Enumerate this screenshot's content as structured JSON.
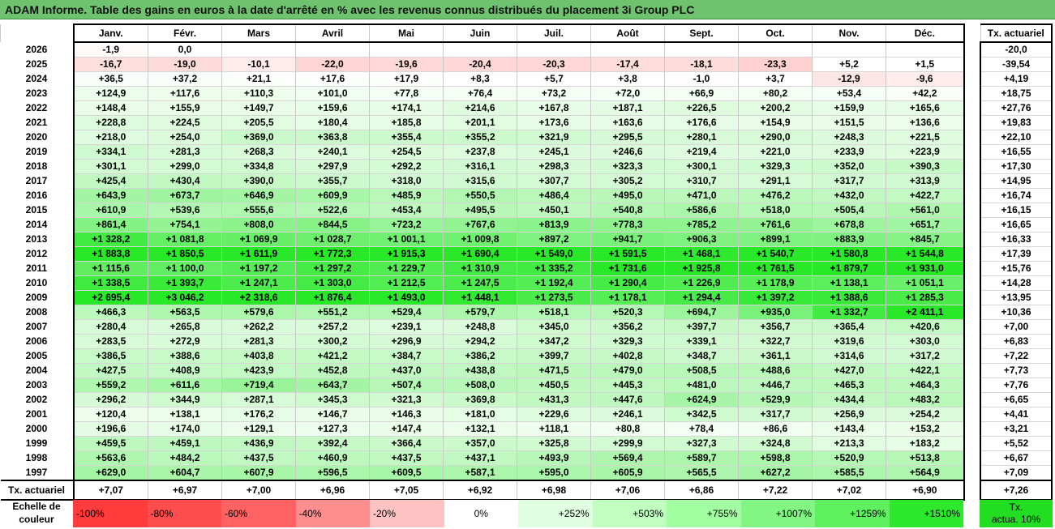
{
  "title": "ADAM Informe. Table des gains en euros à la date d'arrêté en % avec les revenus connus distribués du placement 3i Group PLC",
  "months": [
    "Janv.",
    "Févr.",
    "Mars",
    "Avril",
    "Mai",
    "Juin",
    "Juil.",
    "Août",
    "Sept.",
    "Oct.",
    "Nov.",
    "Déc."
  ],
  "act_header": "Tx. actuariel",
  "rows": [
    {
      "year": "2026",
      "values": [
        "-1,9",
        "0,0",
        "",
        "",
        "",
        "",
        "",
        "",
        "",
        "",
        "",
        ""
      ],
      "act": "-20,0"
    },
    {
      "year": "2025",
      "values": [
        "-16,7",
        "-19,0",
        "-10,1",
        "-22,0",
        "-19,6",
        "-20,4",
        "-20,3",
        "-17,4",
        "-18,1",
        "-23,3",
        "+5,2",
        "+1,5"
      ],
      "act": "-39,54"
    },
    {
      "year": "2024",
      "values": [
        "+36,5",
        "+37,2",
        "+21,1",
        "+17,6",
        "+17,9",
        "+8,3",
        "+5,7",
        "+3,8",
        "-1,0",
        "+3,7",
        "-12,9",
        "-9,6"
      ],
      "act": "+4,19"
    },
    {
      "year": "2023",
      "values": [
        "+124,9",
        "+117,6",
        "+110,3",
        "+101,0",
        "+77,8",
        "+76,4",
        "+73,2",
        "+72,0",
        "+66,9",
        "+80,2",
        "+53,4",
        "+42,2"
      ],
      "act": "+18,75"
    },
    {
      "year": "2022",
      "values": [
        "+148,4",
        "+155,9",
        "+149,7",
        "+159,6",
        "+174,1",
        "+214,6",
        "+167,8",
        "+187,1",
        "+226,5",
        "+200,2",
        "+159,9",
        "+165,6"
      ],
      "act": "+27,76"
    },
    {
      "year": "2021",
      "values": [
        "+228,8",
        "+224,5",
        "+205,5",
        "+180,4",
        "+185,8",
        "+201,1",
        "+173,6",
        "+163,6",
        "+176,6",
        "+154,9",
        "+151,5",
        "+136,6"
      ],
      "act": "+19,83"
    },
    {
      "year": "2020",
      "values": [
        "+218,0",
        "+254,0",
        "+369,0",
        "+363,8",
        "+355,4",
        "+355,2",
        "+321,9",
        "+295,5",
        "+280,1",
        "+290,0",
        "+248,3",
        "+221,5"
      ],
      "act": "+22,10"
    },
    {
      "year": "2019",
      "values": [
        "+334,1",
        "+281,3",
        "+268,3",
        "+240,1",
        "+254,5",
        "+237,8",
        "+245,1",
        "+246,6",
        "+219,4",
        "+221,0",
        "+233,9",
        "+223,9"
      ],
      "act": "+16,55"
    },
    {
      "year": "2018",
      "values": [
        "+301,1",
        "+299,0",
        "+334,8",
        "+297,9",
        "+292,2",
        "+316,1",
        "+298,3",
        "+323,3",
        "+300,1",
        "+329,3",
        "+352,0",
        "+390,3"
      ],
      "act": "+17,30"
    },
    {
      "year": "2017",
      "values": [
        "+425,4",
        "+430,4",
        "+390,0",
        "+355,7",
        "+318,0",
        "+315,6",
        "+307,7",
        "+305,2",
        "+310,7",
        "+291,1",
        "+317,7",
        "+313,9"
      ],
      "act": "+14,95"
    },
    {
      "year": "2016",
      "values": [
        "+643,9",
        "+673,7",
        "+646,9",
        "+609,9",
        "+485,9",
        "+550,5",
        "+486,4",
        "+495,0",
        "+471,0",
        "+476,2",
        "+432,0",
        "+422,7"
      ],
      "act": "+16,74"
    },
    {
      "year": "2015",
      "values": [
        "+610,9",
        "+539,6",
        "+555,6",
        "+522,6",
        "+453,4",
        "+495,5",
        "+450,1",
        "+540,8",
        "+586,6",
        "+518,0",
        "+505,4",
        "+561,0"
      ],
      "act": "+16,15"
    },
    {
      "year": "2014",
      "values": [
        "+861,4",
        "+754,1",
        "+808,0",
        "+844,5",
        "+723,2",
        "+767,6",
        "+813,9",
        "+778,3",
        "+785,2",
        "+761,6",
        "+678,8",
        "+651,7"
      ],
      "act": "+16,65"
    },
    {
      "year": "2013",
      "values": [
        "+1 328,2",
        "+1 081,8",
        "+1 069,9",
        "+1 028,7",
        "+1 001,1",
        "+1 009,8",
        "+897,2",
        "+941,7",
        "+906,3",
        "+899,1",
        "+883,9",
        "+845,7"
      ],
      "act": "+16,33"
    },
    {
      "year": "2012",
      "values": [
        "+1 883,8",
        "+1 850,5",
        "+1 611,9",
        "+1 772,3",
        "+1 915,3",
        "+1 690,4",
        "+1 549,0",
        "+1 591,5",
        "+1 468,1",
        "+1 540,7",
        "+1 580,8",
        "+1 544,8"
      ],
      "act": "+17,39"
    },
    {
      "year": "2011",
      "values": [
        "+1 115,6",
        "+1 100,0",
        "+1 197,2",
        "+1 297,2",
        "+1 229,7",
        "+1 310,9",
        "+1 335,2",
        "+1 731,6",
        "+1 925,8",
        "+1 761,5",
        "+1 879,7",
        "+1 931,0"
      ],
      "act": "+15,76"
    },
    {
      "year": "2010",
      "values": [
        "+1 338,5",
        "+1 393,7",
        "+1 247,1",
        "+1 303,0",
        "+1 212,5",
        "+1 247,5",
        "+1 192,4",
        "+1 290,4",
        "+1 226,9",
        "+1 178,9",
        "+1 138,1",
        "+1 051,1"
      ],
      "act": "+14,28"
    },
    {
      "year": "2009",
      "values": [
        "+2 695,4",
        "+3 046,2",
        "+2 318,6",
        "+1 876,4",
        "+1 493,0",
        "+1 448,1",
        "+1 273,5",
        "+1 178,1",
        "+1 294,4",
        "+1 397,2",
        "+1 388,6",
        "+1 285,3"
      ],
      "act": "+13,95"
    },
    {
      "year": "2008",
      "values": [
        "+466,3",
        "+563,5",
        "+579,6",
        "+551,2",
        "+529,4",
        "+579,7",
        "+518,1",
        "+520,3",
        "+694,7",
        "+935,0",
        "+1 332,7",
        "+2 411,1"
      ],
      "act": "+10,36"
    },
    {
      "year": "2007",
      "values": [
        "+280,4",
        "+265,8",
        "+262,2",
        "+257,2",
        "+239,1",
        "+248,8",
        "+345,0",
        "+356,2",
        "+397,7",
        "+356,7",
        "+365,4",
        "+420,6"
      ],
      "act": "+7,00"
    },
    {
      "year": "2006",
      "values": [
        "+283,5",
        "+272,9",
        "+281,3",
        "+300,2",
        "+296,9",
        "+294,2",
        "+347,2",
        "+329,3",
        "+339,1",
        "+322,7",
        "+319,6",
        "+303,0"
      ],
      "act": "+6,83"
    },
    {
      "year": "2005",
      "values": [
        "+386,5",
        "+388,6",
        "+403,8",
        "+421,2",
        "+384,7",
        "+386,2",
        "+399,7",
        "+402,8",
        "+348,7",
        "+361,1",
        "+314,6",
        "+317,2"
      ],
      "act": "+7,22"
    },
    {
      "year": "2004",
      "values": [
        "+427,5",
        "+408,9",
        "+423,9",
        "+452,8",
        "+437,0",
        "+438,8",
        "+471,5",
        "+479,0",
        "+508,5",
        "+488,6",
        "+427,0",
        "+422,1"
      ],
      "act": "+7,73"
    },
    {
      "year": "2003",
      "values": [
        "+559,2",
        "+611,6",
        "+719,4",
        "+643,7",
        "+507,4",
        "+508,0",
        "+450,5",
        "+445,3",
        "+481,0",
        "+446,7",
        "+465,3",
        "+464,3"
      ],
      "act": "+7,76"
    },
    {
      "year": "2002",
      "values": [
        "+296,2",
        "+344,9",
        "+287,1",
        "+345,3",
        "+321,3",
        "+369,8",
        "+431,3",
        "+447,6",
        "+624,9",
        "+529,9",
        "+434,4",
        "+483,2"
      ],
      "act": "+6,65"
    },
    {
      "year": "2001",
      "values": [
        "+120,4",
        "+138,1",
        "+176,2",
        "+146,7",
        "+146,3",
        "+181,0",
        "+229,6",
        "+246,1",
        "+342,5",
        "+317,7",
        "+256,9",
        "+254,2"
      ],
      "act": "+4,41"
    },
    {
      "year": "2000",
      "values": [
        "+196,6",
        "+174,0",
        "+129,1",
        "+127,3",
        "+147,4",
        "+132,1",
        "+118,1",
        "+80,8",
        "+78,4",
        "+86,6",
        "+143,4",
        "+153,2"
      ],
      "act": "+3,21"
    },
    {
      "year": "1999",
      "values": [
        "+459,5",
        "+459,1",
        "+436,9",
        "+392,4",
        "+366,4",
        "+357,0",
        "+325,8",
        "+299,9",
        "+327,3",
        "+324,8",
        "+213,3",
        "+183,2"
      ],
      "act": "+5,52"
    },
    {
      "year": "1998",
      "values": [
        "+563,6",
        "+484,2",
        "+437,5",
        "+460,9",
        "+437,5",
        "+437,1",
        "+493,9",
        "+569,4",
        "+589,7",
        "+598,8",
        "+520,9",
        "+513,8"
      ],
      "act": "+6,67"
    },
    {
      "year": "1997",
      "values": [
        "+629,0",
        "+604,7",
        "+607,9",
        "+596,5",
        "+609,5",
        "+587,1",
        "+595,0",
        "+605,9",
        "+565,5",
        "+627,2",
        "+585,5",
        "+564,9"
      ],
      "act": "+7,09"
    }
  ],
  "footer": {
    "label": "Tx. actuariel",
    "values": [
      "+7,07",
      "+6,97",
      "+7,00",
      "+6,96",
      "+7,05",
      "+6,92",
      "+6,98",
      "+7,06",
      "+6,86",
      "+7,22",
      "+7,02",
      "+6,90"
    ],
    "act": "+7,26"
  },
  "scale": {
    "label_line1": "Echelle de",
    "label_line2": "couleur",
    "steps": [
      {
        "label": "-100%",
        "color": "#ff3b3b",
        "kind": "neg"
      },
      {
        "label": "-80%",
        "color": "#ff4d4d",
        "kind": "neg"
      },
      {
        "label": "-60%",
        "color": "#ff6262",
        "kind": "neg"
      },
      {
        "label": "-40%",
        "color": "#ff8e8e",
        "kind": "neg"
      },
      {
        "label": "-20%",
        "color": "#ffc2c2",
        "kind": "neg"
      },
      {
        "label": "0%",
        "color": "#ffffff",
        "kind": "zero"
      },
      {
        "label": "+252%",
        "color": "#e0ffe0",
        "kind": "pos"
      },
      {
        "label": "+503%",
        "color": "#c0ffc0",
        "kind": "pos"
      },
      {
        "label": "+755%",
        "color": "#a2ffa2",
        "kind": "pos"
      },
      {
        "label": "+1007%",
        "color": "#82f582",
        "kind": "pos"
      },
      {
        "label": "+1259%",
        "color": "#5ef05e",
        "kind": "pos"
      },
      {
        "label": "+1510%",
        "color": "#2ee82e",
        "kind": "pos"
      }
    ],
    "act_line1": "Tx.",
    "act_line2": "actua. 10%",
    "act_color": "#22dd22"
  }
}
